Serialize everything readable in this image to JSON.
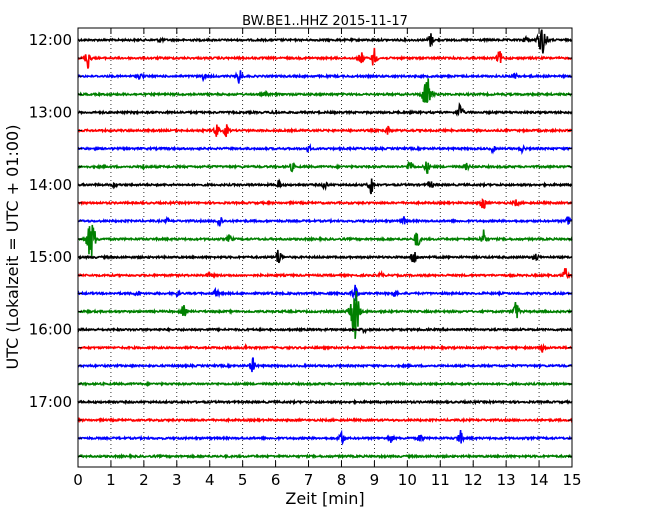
{
  "chart_data": {
    "type": "line",
    "title": "BW.BE1..HHZ 2015-11-17",
    "xlabel": "Zeit  [min]",
    "ylabel": "UTC (Lokalzeit = UTC + 01:00)",
    "xlim": [
      0,
      15
    ],
    "x_ticks": [
      "0",
      "1",
      "2",
      "3",
      "4",
      "5",
      "6",
      "7",
      "8",
      "9",
      "10",
      "11",
      "12",
      "13",
      "14",
      "15"
    ],
    "y_tick_labels": [
      "12:00",
      "13:00",
      "14:00",
      "15:00",
      "16:00",
      "17:00"
    ],
    "grid": "vertical dotted",
    "trace_colors": [
      "#000000",
      "#ff0000",
      "#0000ff",
      "#008000"
    ],
    "traces": [
      {
        "start": "12:00",
        "events": [
          [
            10.7,
            7
          ],
          [
            14.1,
            14
          ],
          [
            13.6,
            3
          ],
          [
            2.5,
            2
          ]
        ]
      },
      {
        "start": "12:15",
        "events": [
          [
            0.3,
            11
          ],
          [
            9.0,
            11
          ],
          [
            8.6,
            6
          ],
          [
            12.8,
            7
          ]
        ]
      },
      {
        "start": "12:30",
        "events": [
          [
            4.9,
            8
          ],
          [
            1.9,
            3
          ],
          [
            3.8,
            3
          ],
          [
            13.3,
            4
          ]
        ]
      },
      {
        "start": "12:45",
        "events": [
          [
            10.6,
            18
          ],
          [
            5.7,
            2
          ]
        ]
      },
      {
        "start": "13:00",
        "events": [
          [
            11.6,
            10
          ],
          [
            6.0,
            2
          ]
        ]
      },
      {
        "start": "13:15",
        "events": [
          [
            4.2,
            7
          ],
          [
            4.5,
            6
          ],
          [
            9.4,
            4
          ]
        ]
      },
      {
        "start": "13:30",
        "events": [
          [
            7.0,
            3
          ],
          [
            12.6,
            3
          ],
          [
            13.5,
            3
          ]
        ]
      },
      {
        "start": "13:45",
        "events": [
          [
            10.1,
            8
          ],
          [
            10.6,
            6
          ],
          [
            6.5,
            4
          ],
          [
            11.8,
            3
          ],
          [
            2.0,
            2
          ]
        ]
      },
      {
        "start": "14:00",
        "events": [
          [
            8.9,
            10
          ],
          [
            6.1,
            4
          ],
          [
            7.5,
            4
          ],
          [
            10.7,
            4
          ],
          [
            1.1,
            2
          ]
        ]
      },
      {
        "start": "14:15",
        "events": [
          [
            12.3,
            7
          ],
          [
            13.3,
            3
          ]
        ]
      },
      {
        "start": "14:30",
        "events": [
          [
            4.3,
            7
          ],
          [
            14.9,
            7
          ],
          [
            9.9,
            4
          ],
          [
            2.7,
            2
          ]
        ]
      },
      {
        "start": "14:45",
        "events": [
          [
            0.4,
            20
          ],
          [
            10.3,
            10
          ],
          [
            12.3,
            10
          ],
          [
            4.6,
            4
          ]
        ]
      },
      {
        "start": "15:00",
        "events": [
          [
            6.1,
            10
          ],
          [
            10.2,
            9
          ],
          [
            13.9,
            4
          ]
        ]
      },
      {
        "start": "15:15",
        "events": [
          [
            14.8,
            7
          ],
          [
            4.0,
            3
          ],
          [
            9.2,
            2
          ]
        ]
      },
      {
        "start": "15:30",
        "events": [
          [
            8.4,
            10
          ],
          [
            4.2,
            4
          ],
          [
            1.8,
            3
          ],
          [
            3.0,
            3
          ],
          [
            9.6,
            3
          ]
        ]
      },
      {
        "start": "15:45",
        "events": [
          [
            8.4,
            30
          ],
          [
            3.2,
            6
          ],
          [
            13.3,
            11
          ]
        ]
      },
      {
        "start": "16:00",
        "events": [
          [
            8.7,
            2
          ]
        ]
      },
      {
        "start": "16:15",
        "events": [
          [
            14.1,
            4
          ],
          [
            5.1,
            2
          ]
        ]
      },
      {
        "start": "16:30",
        "events": [
          [
            5.3,
            8
          ]
        ]
      },
      {
        "start": "16:45",
        "events": []
      },
      {
        "start": "17:00",
        "events": []
      },
      {
        "start": "17:15",
        "events": []
      },
      {
        "start": "17:30",
        "events": [
          [
            8.0,
            8
          ],
          [
            11.6,
            8
          ],
          [
            9.5,
            4
          ],
          [
            10.4,
            4
          ]
        ]
      },
      {
        "start": "17:45",
        "events": []
      }
    ]
  }
}
